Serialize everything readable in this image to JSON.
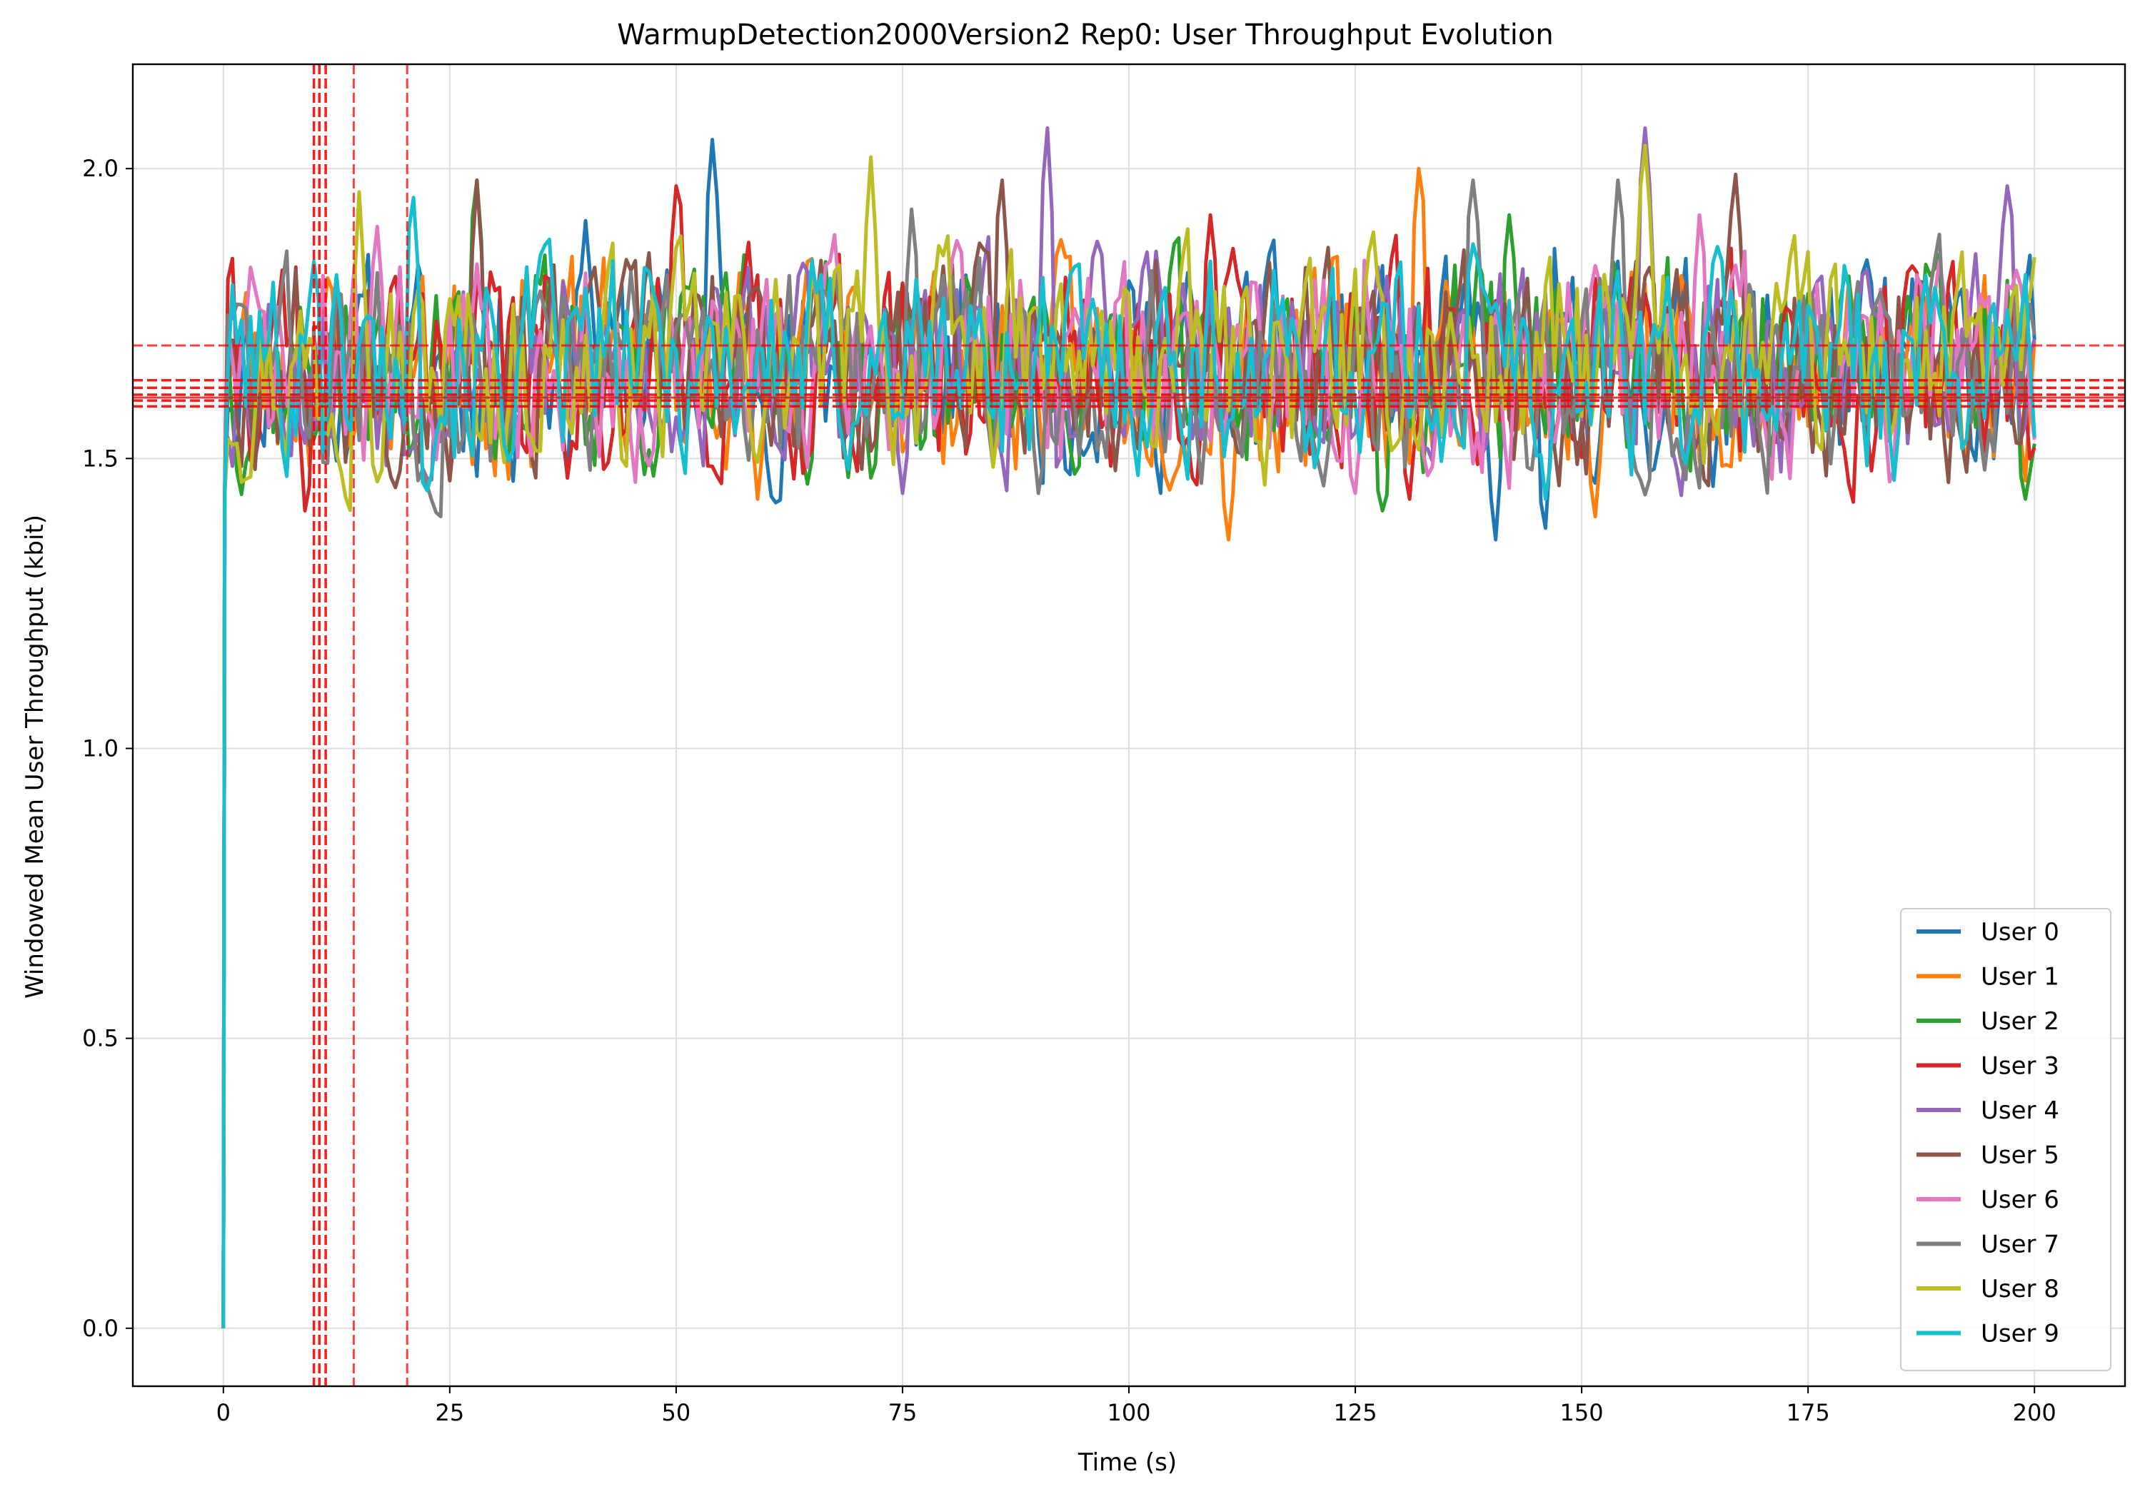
{
  "chart_data": {
    "type": "line",
    "title": "WarmupDetection2000Version2 Rep0: User Throughput Evolution",
    "xlabel": "Time (s)",
    "ylabel": "Windowed Mean User Throughput (kbit)",
    "xlim": [
      -10,
      210
    ],
    "ylim": [
      -0.1,
      2.18
    ],
    "xticks": [
      0,
      25,
      50,
      75,
      100,
      125,
      150,
      175,
      200
    ],
    "xtick_labels": [
      "0",
      "25",
      "50",
      "75",
      "100",
      "125",
      "150",
      "175",
      "200"
    ],
    "yticks": [
      0.0,
      0.5,
      1.0,
      1.5,
      2.0
    ],
    "ytick_labels": [
      "0.0",
      "0.5",
      "1.0",
      "1.5",
      "2.0"
    ],
    "grid": true,
    "legend_position": "lower-right",
    "sample_step_s": 0.5,
    "x_range": [
      0,
      200
    ],
    "series": [
      {
        "name": "User 0",
        "color": "#1f77b4",
        "mean": 1.655,
        "peaks": [
          [
            54.0,
            2.05
          ],
          [
            140.5,
            1.36
          ],
          [
            146.0,
            1.38
          ],
          [
            40.0,
            1.91
          ]
        ],
        "seed": 11
      },
      {
        "name": "User 1",
        "color": "#ff7f0e",
        "mean": 1.66,
        "peaks": [
          [
            132.0,
            2.0
          ],
          [
            111.0,
            1.36
          ],
          [
            151.5,
            1.4
          ],
          [
            59.0,
            1.43
          ]
        ],
        "seed": 23
      },
      {
        "name": "User 2",
        "color": "#2ca02c",
        "mean": 1.655,
        "peaks": [
          [
            28.0,
            1.98
          ],
          [
            199.0,
            1.43
          ],
          [
            128.0,
            1.41
          ],
          [
            142.0,
            1.92
          ]
        ],
        "seed": 37
      },
      {
        "name": "User 3",
        "color": "#d62728",
        "mean": 1.66,
        "peaks": [
          [
            50.0,
            1.97
          ],
          [
            9.0,
            1.41
          ],
          [
            109.0,
            1.92
          ],
          [
            131.0,
            1.43
          ]
        ],
        "seed": 41
      },
      {
        "name": "User 4",
        "color": "#9467bd",
        "mean": 1.66,
        "peaks": [
          [
            91.0,
            2.07
          ],
          [
            157.0,
            2.07
          ],
          [
            75.0,
            1.44
          ],
          [
            197.0,
            1.97
          ]
        ],
        "seed": 53
      },
      {
        "name": "User 5",
        "color": "#8c564b",
        "mean": 1.665,
        "peaks": [
          [
            28.0,
            1.98
          ],
          [
            167.0,
            1.99
          ],
          [
            19.0,
            1.45
          ],
          [
            86.0,
            1.98
          ]
        ],
        "seed": 67
      },
      {
        "name": "User 6",
        "color": "#e377c2",
        "mean": 1.66,
        "peaks": [
          [
            17.0,
            1.9
          ],
          [
            125.0,
            1.44
          ],
          [
            163.0,
            1.92
          ],
          [
            184.0,
            1.46
          ]
        ],
        "seed": 71
      },
      {
        "name": "User 7",
        "color": "#7f7f7f",
        "mean": 1.655,
        "peaks": [
          [
            138.0,
            1.98
          ],
          [
            90.0,
            1.44
          ],
          [
            154.0,
            1.98
          ],
          [
            76.0,
            1.93
          ]
        ],
        "seed": 83
      },
      {
        "name": "User 8",
        "color": "#bcbd22",
        "mean": 1.66,
        "peaks": [
          [
            71.5,
            2.02
          ],
          [
            157.0,
            2.04
          ],
          [
            15.0,
            1.96
          ],
          [
            17.0,
            1.46
          ]
        ],
        "seed": 97
      },
      {
        "name": "User 9",
        "color": "#17becf",
        "mean": 1.665,
        "peaks": [
          [
            21.0,
            1.95
          ],
          [
            10.0,
            1.84
          ],
          [
            146.0,
            1.43
          ],
          [
            138.0,
            1.87
          ]
        ],
        "seed": 101
      }
    ],
    "annotations": {
      "vertical_dashed": [
        {
          "x": 10.0,
          "color": "#ff0000",
          "alpha": 0.9,
          "width": 3.5
        },
        {
          "x": 10.6,
          "color": "#ff0000",
          "alpha": 0.9,
          "width": 3.5
        },
        {
          "x": 11.3,
          "color": "#ff0000",
          "alpha": 0.9,
          "width": 3.5
        },
        {
          "x": 14.4,
          "color": "#ff0000",
          "alpha": 0.75,
          "width": 3
        },
        {
          "x": 20.3,
          "color": "#ff0000",
          "alpha": 0.75,
          "width": 3
        }
      ],
      "horizontal_dashed": [
        {
          "y": 1.695,
          "color": "#ff0000",
          "alpha": 0.75,
          "width": 3
        },
        {
          "y": 1.635,
          "color": "#ff0000",
          "alpha": 0.9,
          "width": 3.5
        },
        {
          "y": 1.622,
          "color": "#ff0000",
          "alpha": 0.9,
          "width": 3.5
        },
        {
          "y": 1.61,
          "color": "#ff0000",
          "alpha": 0.9,
          "width": 3.5
        },
        {
          "y": 1.6,
          "color": "#ff0000",
          "alpha": 0.9,
          "width": 3.5
        },
        {
          "y": 1.59,
          "color": "#ff0000",
          "alpha": 0.9,
          "width": 3.5
        }
      ],
      "horizontal_solid": [
        {
          "y": 1.605,
          "color": "#cc2222",
          "alpha": 0.85,
          "width": 3
        }
      ]
    }
  }
}
